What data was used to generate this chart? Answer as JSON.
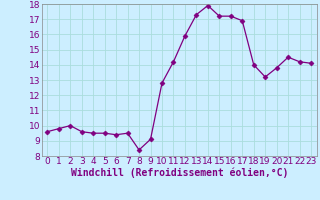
{
  "x": [
    0,
    1,
    2,
    3,
    4,
    5,
    6,
    7,
    8,
    9,
    10,
    11,
    12,
    13,
    14,
    15,
    16,
    17,
    18,
    19,
    20,
    21,
    22,
    23
  ],
  "y": [
    9.6,
    9.8,
    10.0,
    9.6,
    9.5,
    9.5,
    9.4,
    9.5,
    8.4,
    9.1,
    12.8,
    14.2,
    15.9,
    17.3,
    17.9,
    17.2,
    17.2,
    16.9,
    14.0,
    13.2,
    13.8,
    14.5,
    14.2,
    14.1
  ],
  "line_color": "#800080",
  "marker": "D",
  "marker_size": 2.5,
  "bg_color": "#cceeff",
  "grid_color": "#aadddd",
  "xlabel": "Windchill (Refroidissement éolien,°C)",
  "xlim": [
    -0.5,
    23.5
  ],
  "ylim": [
    8,
    18
  ],
  "yticks": [
    8,
    9,
    10,
    11,
    12,
    13,
    14,
    15,
    16,
    17,
    18
  ],
  "xticks": [
    0,
    1,
    2,
    3,
    4,
    5,
    6,
    7,
    8,
    9,
    10,
    11,
    12,
    13,
    14,
    15,
    16,
    17,
    18,
    19,
    20,
    21,
    22,
    23
  ],
  "xlabel_fontsize": 7,
  "tick_fontsize": 6.5,
  "label_color": "#800080"
}
